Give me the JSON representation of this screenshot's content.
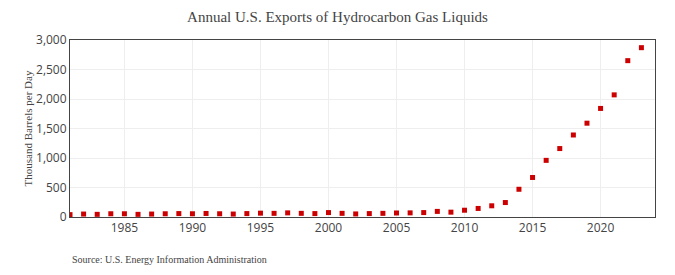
{
  "chart_data": {
    "type": "scatter",
    "title": "Annual U.S. Exports of Hydrocarbon Gas Liquids",
    "ylabel": "Thousand Barrels per Day",
    "annotations": [
      "Source: U.S. Energy Information Administration"
    ],
    "color": "#cc0000",
    "marker": "square",
    "grid": true,
    "x": [
      1981,
      1982,
      1983,
      1984,
      1985,
      1986,
      1987,
      1988,
      1989,
      1990,
      1991,
      1992,
      1993,
      1994,
      1995,
      1996,
      1997,
      1998,
      1999,
      2000,
      2001,
      2002,
      2003,
      2004,
      2005,
      2006,
      2007,
      2008,
      2009,
      2010,
      2011,
      2012,
      2013,
      2014,
      2015,
      2016,
      2017,
      2018,
      2019,
      2020,
      2021,
      2022,
      2023
    ],
    "values": [
      40,
      50,
      45,
      55,
      55,
      45,
      50,
      55,
      58,
      55,
      60,
      55,
      50,
      58,
      65,
      62,
      70,
      62,
      58,
      75,
      62,
      52,
      58,
      62,
      68,
      70,
      75,
      95,
      82,
      115,
      145,
      190,
      245,
      470,
      670,
      960,
      1160,
      1390,
      1590,
      1840,
      2070,
      2650,
      2870
    ],
    "xlim": [
      1981,
      2024
    ],
    "xticks": [
      1985,
      1990,
      1995,
      2000,
      2005,
      2010,
      2015,
      2020
    ],
    "ylim": [
      0,
      3000
    ],
    "yticks": [
      0,
      500,
      {
        "value": 1000,
        "label": "1,000"
      },
      {
        "value": 1500,
        "label": "1,500"
      },
      {
        "value": 2000,
        "label": "2,000"
      },
      {
        "value": 2500,
        "label": "2,500"
      },
      {
        "value": 3000,
        "label": "3,000"
      }
    ]
  }
}
